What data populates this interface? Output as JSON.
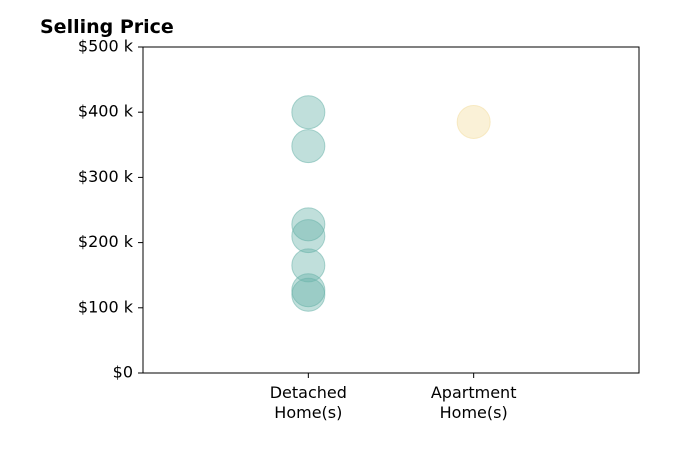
{
  "chart_data": {
    "type": "scatter",
    "title": "Selling Price",
    "xlabel": "",
    "ylabel": "",
    "categories": [
      "Detached\nHome(s)",
      "Apartment\nHome(s)"
    ],
    "x_range": [
      0,
      3
    ],
    "ylim": [
      0,
      500
    ],
    "y_ticks": [
      {
        "value": 0,
        "label": "$0"
      },
      {
        "value": 100,
        "label": "$100 k"
      },
      {
        "value": 200,
        "label": "$200 k"
      },
      {
        "value": 300,
        "label": "$300 k"
      },
      {
        "value": 400,
        "label": "$400 k"
      },
      {
        "value": 500,
        "label": "$500 k"
      }
    ],
    "grid": false,
    "legend": "none",
    "series": [
      {
        "category_index": 0,
        "color": "#69b3aa",
        "values": [
          400,
          348,
          228,
          210,
          165,
          127,
          120
        ]
      },
      {
        "category_index": 1,
        "color": "#f3dd9f",
        "values": [
          385
        ]
      }
    ]
  }
}
